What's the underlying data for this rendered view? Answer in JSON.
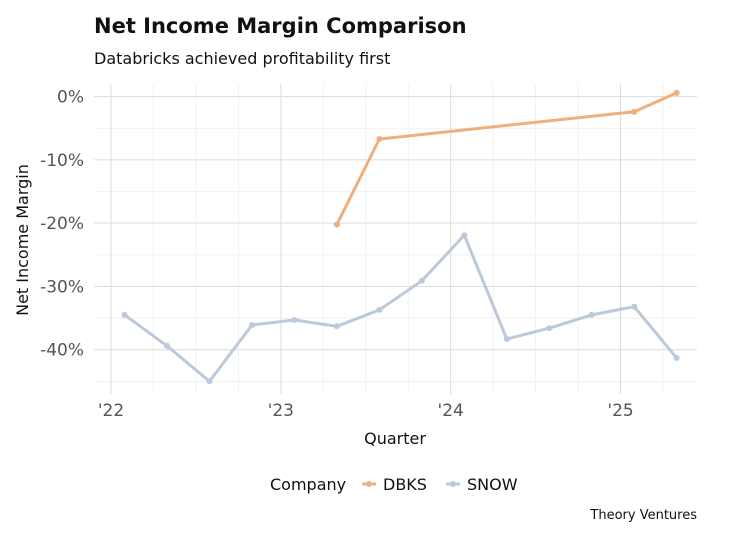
{
  "chart_data": {
    "type": "line",
    "title": "Net Income Margin Comparison",
    "subtitle": "Databricks achieved profitability first",
    "xlabel": "Quarter",
    "ylabel": "Net Income Margin",
    "x_ticks": [
      {
        "label": "'22",
        "value": 2022.0
      },
      {
        "label": "'23",
        "value": 2023.0
      },
      {
        "label": "'24",
        "value": 2024.0
      },
      {
        "label": "'25",
        "value": 2025.0
      }
    ],
    "y_ticks": [
      {
        "label": "0%",
        "value": 0
      },
      {
        "label": "-10%",
        "value": -10
      },
      {
        "label": "-20%",
        "value": -20
      },
      {
        "label": "-30%",
        "value": -30
      },
      {
        "label": "-40%",
        "value": -40
      }
    ],
    "xlim": [
      2021.9,
      2025.45
    ],
    "ylim": [
      -47,
      2
    ],
    "grid": true,
    "legend": {
      "title": "Company",
      "position": "bottom"
    },
    "series": [
      {
        "name": "DBKS",
        "color": "#EDB07E",
        "x": [
          2023.33,
          2023.58,
          2025.08,
          2025.33
        ],
        "y": [
          -20.2,
          -6.7,
          -2.4,
          0.6
        ]
      },
      {
        "name": "SNOW",
        "color": "#BBC9DA",
        "x": [
          2022.08,
          2022.33,
          2022.58,
          2022.83,
          2023.08,
          2023.33,
          2023.58,
          2023.83,
          2024.08,
          2024.33,
          2024.58,
          2024.83,
          2025.08,
          2025.33
        ],
        "y": [
          -34.5,
          -39.4,
          -45.0,
          -36.1,
          -35.3,
          -36.3,
          -33.7,
          -29.1,
          -21.9,
          -38.3,
          -36.6,
          -34.5,
          -33.2,
          -41.3
        ]
      }
    ]
  },
  "caption": "Theory Ventures"
}
